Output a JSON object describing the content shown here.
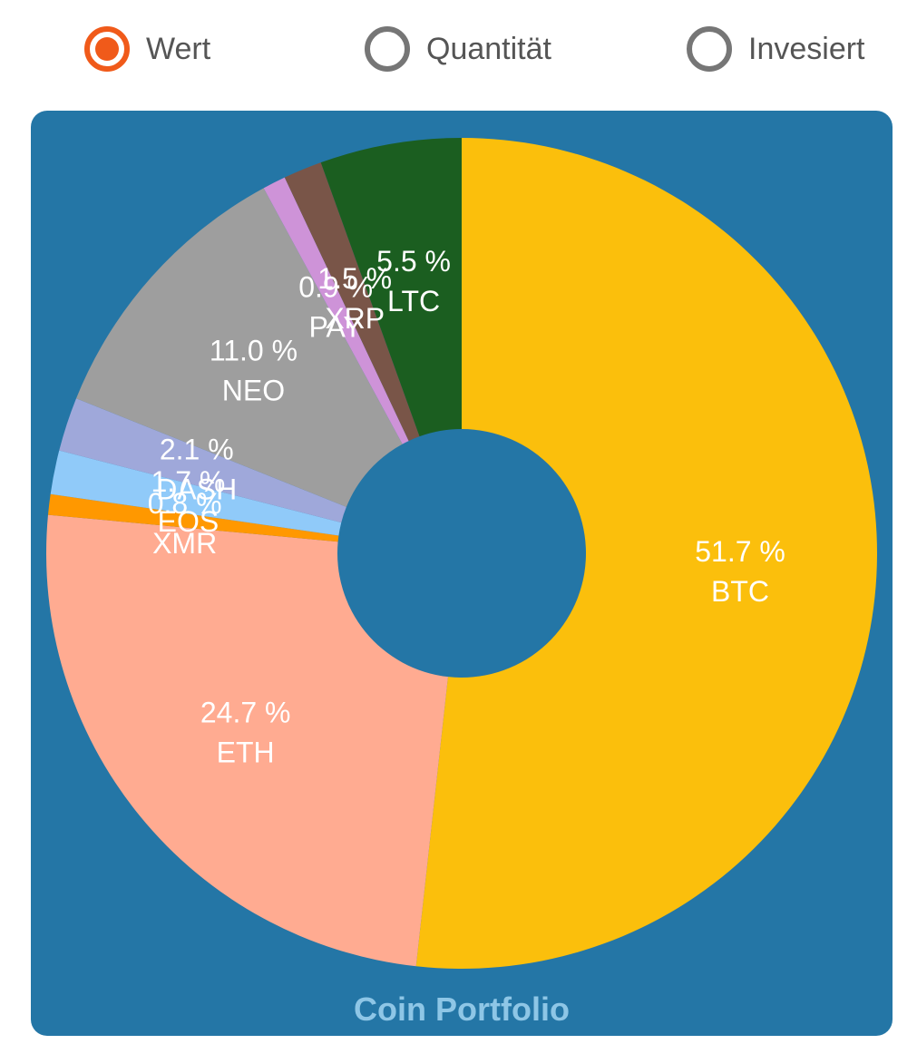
{
  "radio_group": {
    "selected": "Wert",
    "options": [
      {
        "label": "Wert",
        "checked": true
      },
      {
        "label": "Quantität",
        "checked": false
      },
      {
        "label": "Invesiert",
        "checked": false
      }
    ]
  },
  "colors": {
    "accent": "#f05a1a",
    "card_background": "#2476a6",
    "title": "#8ec6e6",
    "label_text": "#ffffff"
  },
  "chart_data": {
    "type": "pie",
    "title": "Coin Portfolio",
    "donut": true,
    "unit": "%",
    "slices": [
      {
        "label": "BTC",
        "value": 51.7,
        "display": "51.7 %",
        "color": "#fbbf0c"
      },
      {
        "label": "ETH",
        "value": 24.7,
        "display": "24.7 %",
        "color": "#ffab91"
      },
      {
        "label": "XMR",
        "value": 0.8,
        "display": "0.8 %",
        "color": "#ff9800"
      },
      {
        "label": "EOS",
        "value": 1.7,
        "display": "1.7 %",
        "color": "#90caf9"
      },
      {
        "label": "DASH",
        "value": 2.1,
        "display": "2.1 %",
        "color": "#9fa8da"
      },
      {
        "label": "NEO",
        "value": 11.0,
        "display": "11.0 %",
        "color": "#9e9e9e"
      },
      {
        "label": "PAY",
        "value": 0.9,
        "display": "0.9 %",
        "color": "#ce93d8"
      },
      {
        "label": "XRP",
        "value": 1.5,
        "display": "1.5 %",
        "color": "#795548"
      },
      {
        "label": "LTC",
        "value": 5.5,
        "display": "5.5 %",
        "color": "#1b5e20"
      }
    ]
  }
}
